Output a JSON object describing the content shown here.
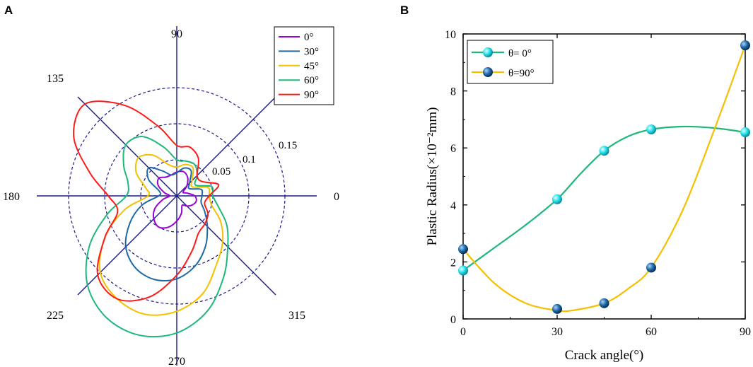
{
  "panels": {
    "a_label": "A",
    "b_label": "B"
  },
  "chart_data": [
    {
      "type": "polar-line",
      "panel": "A",
      "title": "",
      "angle_labels": [
        {
          "angle": 0,
          "text": "0"
        },
        {
          "angle": 90,
          "text": "90"
        },
        {
          "angle": 135,
          "text": "135"
        },
        {
          "angle": 180,
          "text": "180"
        },
        {
          "angle": 225,
          "text": "225"
        },
        {
          "angle": 270,
          "text": "270"
        },
        {
          "angle": 315,
          "text": "315"
        }
      ],
      "spoke_angles": [
        0,
        45,
        90,
        135
      ],
      "radial_range": [
        0,
        0.2
      ],
      "radial_rings": [
        0.05,
        0.1,
        0.15
      ],
      "radial_labels": [
        "0.05",
        "0.1",
        "0.15"
      ],
      "legend": {
        "position": "top-right",
        "entries": [
          "0°",
          "30°",
          "45°",
          "60°",
          "90°"
        ]
      },
      "series": [
        {
          "name": "0°",
          "color": "#9b00d9",
          "points": [
            [
              0,
              0.025
            ],
            [
              15,
              0.015
            ],
            [
              30,
              0.01
            ],
            [
              45,
              0.02
            ],
            [
              60,
              0.03
            ],
            [
              75,
              0.035
            ],
            [
              90,
              0.033
            ],
            [
              105,
              0.03
            ],
            [
              120,
              0.03
            ],
            [
              135,
              0.035
            ],
            [
              150,
              0.03
            ],
            [
              165,
              0.018
            ],
            [
              180,
              0.01
            ],
            [
              195,
              0.02
            ],
            [
              210,
              0.035
            ],
            [
              225,
              0.045
            ],
            [
              240,
              0.05
            ],
            [
              255,
              0.045
            ],
            [
              270,
              0.035
            ],
            [
              285,
              0.025
            ],
            [
              300,
              0.015
            ],
            [
              315,
              0.02
            ],
            [
              330,
              0.025
            ],
            [
              345,
              0.028
            ]
          ]
        },
        {
          "name": "30°",
          "color": "#1f6aa5",
          "points": [
            [
              0,
              0.035
            ],
            [
              15,
              0.035
            ],
            [
              30,
              0.02
            ],
            [
              45,
              0.025
            ],
            [
              60,
              0.04
            ],
            [
              75,
              0.04
            ],
            [
              90,
              0.032
            ],
            [
              105,
              0.03
            ],
            [
              120,
              0.04
            ],
            [
              135,
              0.055
            ],
            [
              150,
              0.045
            ],
            [
              165,
              0.025
            ],
            [
              180,
              0.025
            ],
            [
              195,
              0.05
            ],
            [
              210,
              0.075
            ],
            [
              225,
              0.1
            ],
            [
              240,
              0.115
            ],
            [
              255,
              0.12
            ],
            [
              270,
              0.115
            ],
            [
              285,
              0.1
            ],
            [
              300,
              0.08
            ],
            [
              315,
              0.06
            ],
            [
              330,
              0.045
            ],
            [
              345,
              0.035
            ]
          ]
        },
        {
          "name": "45°",
          "color": "#f5c000",
          "points": [
            [
              0,
              0.045
            ],
            [
              15,
              0.045
            ],
            [
              30,
              0.025
            ],
            [
              45,
              0.03
            ],
            [
              60,
              0.045
            ],
            [
              75,
              0.045
            ],
            [
              90,
              0.04
            ],
            [
              105,
              0.045
            ],
            [
              120,
              0.065
            ],
            [
              135,
              0.075
            ],
            [
              150,
              0.065
            ],
            [
              165,
              0.045
            ],
            [
              180,
              0.04
            ],
            [
              195,
              0.075
            ],
            [
              210,
              0.115
            ],
            [
              225,
              0.15
            ],
            [
              240,
              0.165
            ],
            [
              255,
              0.17
            ],
            [
              270,
              0.16
            ],
            [
              285,
              0.14
            ],
            [
              300,
              0.11
            ],
            [
              315,
              0.09
            ],
            [
              330,
              0.07
            ],
            [
              345,
              0.05
            ]
          ]
        },
        {
          "name": "60°",
          "color": "#1db87a",
          "points": [
            [
              0,
              0.05
            ],
            [
              15,
              0.05
            ],
            [
              30,
              0.03
            ],
            [
              45,
              0.04
            ],
            [
              60,
              0.05
            ],
            [
              75,
              0.05
            ],
            [
              90,
              0.05
            ],
            [
              105,
              0.07
            ],
            [
              120,
              0.095
            ],
            [
              135,
              0.1
            ],
            [
              150,
              0.085
            ],
            [
              165,
              0.07
            ],
            [
              180,
              0.07
            ],
            [
              195,
              0.1
            ],
            [
              210,
              0.14
            ],
            [
              225,
              0.175
            ],
            [
              240,
              0.195
            ],
            [
              255,
              0.2
            ],
            [
              270,
              0.19
            ],
            [
              285,
              0.165
            ],
            [
              300,
              0.13
            ],
            [
              315,
              0.1
            ],
            [
              330,
              0.08
            ],
            [
              345,
              0.06
            ]
          ]
        },
        {
          "name": "90°",
          "color": "#ff1a1a",
          "points": [
            [
              0,
              0.045
            ],
            [
              15,
              0.06
            ],
            [
              30,
              0.04
            ],
            [
              45,
              0.04
            ],
            [
              60,
              0.06
            ],
            [
              75,
              0.07
            ],
            [
              90,
              0.07
            ],
            [
              105,
              0.1
            ],
            [
              120,
              0.145
            ],
            [
              135,
              0.18
            ],
            [
              150,
              0.165
            ],
            [
              165,
              0.125
            ],
            [
              180,
              0.095
            ],
            [
              195,
              0.085
            ],
            [
              210,
              0.115
            ],
            [
              225,
              0.155
            ],
            [
              240,
              0.165
            ],
            [
              255,
              0.145
            ],
            [
              270,
              0.11
            ],
            [
              285,
              0.08
            ],
            [
              300,
              0.06
            ],
            [
              315,
              0.055
            ],
            [
              330,
              0.05
            ],
            [
              345,
              0.04
            ]
          ]
        }
      ]
    },
    {
      "type": "line",
      "panel": "B",
      "title": "",
      "xlabel": "Crack angle(°)",
      "ylabel": "Plastic Radius(×10⁻²mm)",
      "xlim": [
        0,
        90
      ],
      "ylim": [
        0,
        10
      ],
      "xticks": [
        0,
        30,
        60,
        90
      ],
      "yticks": [
        0,
        2,
        4,
        6,
        8,
        10
      ],
      "legend": {
        "position": "top-left",
        "entries": [
          "θ=  0°",
          "θ=90°"
        ]
      },
      "series": [
        {
          "name": "θ=  0°",
          "line_color": "#1db87a",
          "marker_color": "#22e0ea",
          "x": [
            0,
            30,
            45,
            60,
            90
          ],
          "y": [
            1.7,
            4.2,
            5.9,
            6.65,
            6.55
          ],
          "curve": [
            [
              0,
              1.7
            ],
            [
              10,
              2.5
            ],
            [
              20,
              3.3
            ],
            [
              30,
              4.2
            ],
            [
              37.5,
              5.1
            ],
            [
              45,
              5.9
            ],
            [
              52.5,
              6.4
            ],
            [
              60,
              6.65
            ],
            [
              70,
              6.75
            ],
            [
              80,
              6.7
            ],
            [
              90,
              6.55
            ]
          ]
        },
        {
          "name": "θ=90°",
          "line_color": "#f5c000",
          "marker_color": "#1f6aa5",
          "x": [
            0,
            30,
            45,
            60,
            90
          ],
          "y": [
            2.45,
            0.35,
            0.55,
            1.8,
            9.6
          ],
          "curve": [
            [
              0,
              2.45
            ],
            [
              10,
              1.25
            ],
            [
              20,
              0.55
            ],
            [
              30,
              0.3
            ],
            [
              35,
              0.3
            ],
            [
              45,
              0.55
            ],
            [
              52.5,
              1.05
            ],
            [
              60,
              1.8
            ],
            [
              70,
              3.8
            ],
            [
              80,
              6.6
            ],
            [
              90,
              9.6
            ]
          ]
        }
      ]
    }
  ]
}
